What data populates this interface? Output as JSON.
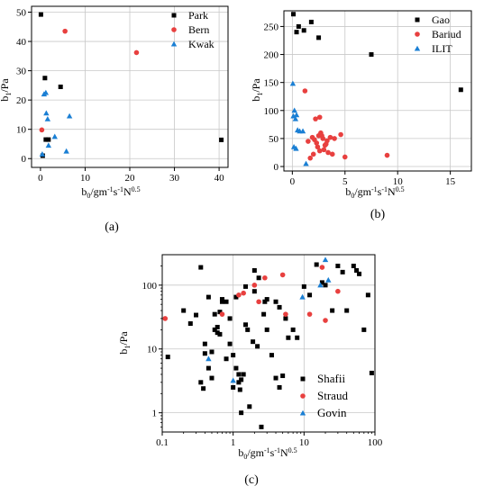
{
  "colors": {
    "black": "#000000",
    "red": "#e8403f",
    "blue": "#1a7fd4",
    "grid": "#c8c8c8",
    "frame": "#000000"
  },
  "panels": [
    {
      "label": "(a)"
    },
    {
      "label": "(b)"
    },
    {
      "label": "(c)"
    }
  ],
  "chart_data": [
    {
      "type": "scatter",
      "panel": "(a)",
      "xlabel": "b0/gm-1s-1N0.5",
      "ylabel": "b1/Pa",
      "xlim": [
        -2,
        42
      ],
      "ylim": [
        -3,
        52
      ],
      "x_scale": "linear",
      "y_scale": "linear",
      "xticks": [
        0,
        10,
        20,
        30,
        40
      ],
      "yticks": [
        0,
        10,
        20,
        30,
        40,
        50
      ],
      "grid": true,
      "legend_position": "top-right",
      "series": [
        {
          "name": "Park",
          "marker": "square",
          "color": "#000000",
          "x": [
            0.1,
            0.5,
            1.0,
            1.2,
            1.8,
            4.5,
            40.5
          ],
          "y": [
            49.2,
            1.0,
            27.5,
            6.5,
            6.5,
            24.5,
            6.4
          ]
        },
        {
          "name": "Bern",
          "marker": "circle",
          "color": "#e8403f",
          "x": [
            5.5,
            21.5,
            0.3
          ],
          "y": [
            43.5,
            36.2,
            9.8
          ]
        },
        {
          "name": "Kwak",
          "marker": "triangle",
          "color": "#1a7fd4",
          "x": [
            0.8,
            1.2,
            1.3,
            1.6,
            1.8,
            3.2,
            6.5,
            5.8,
            0.4
          ],
          "y": [
            22.0,
            22.5,
            15.5,
            13.5,
            4.5,
            7.5,
            14.5,
            2.5,
            1.5
          ]
        }
      ]
    },
    {
      "type": "scatter",
      "panel": "(b)",
      "xlabel": "b0/gm-1s-1N0.5",
      "ylabel": "b1/Pa",
      "xlim": [
        -0.8,
        17
      ],
      "ylim": [
        -8,
        278
      ],
      "x_scale": "linear",
      "y_scale": "linear",
      "xticks": [
        0,
        5,
        10,
        15
      ],
      "yticks": [
        0,
        50,
        100,
        150,
        200,
        250
      ],
      "grid": true,
      "legend_position": "top-right",
      "series": [
        {
          "name": "Gao",
          "marker": "square",
          "color": "#000000",
          "x": [
            0.1,
            0.4,
            0.6,
            1.1,
            1.8,
            2.5,
            7.5,
            16.0
          ],
          "y": [
            272,
            240,
            250,
            243,
            258,
            230,
            200,
            137
          ]
        },
        {
          "name": "Bariud",
          "marker": "circle",
          "color": "#e8403f",
          "x": [
            1.2,
            1.5,
            1.9,
            2.1,
            2.3,
            2.5,
            2.7,
            2.9,
            3.1,
            3.3,
            3.6,
            4.0,
            4.6,
            2.2,
            2.6,
            3.0,
            3.4,
            3.8,
            1.7,
            2.4,
            2.8,
            3.2,
            5.0,
            9.0,
            2.0,
            2.6
          ],
          "y": [
            135,
            45,
            52,
            48,
            42,
            55,
            60,
            50,
            38,
            46,
            52,
            50,
            57,
            85,
            88,
            30,
            25,
            22,
            15,
            35,
            55,
            40,
            17,
            20,
            22,
            28
          ]
        },
        {
          "name": "ILIT",
          "marker": "triangle",
          "color": "#1a7fd4",
          "x": [
            0.05,
            0.2,
            0.4,
            0.3,
            0.5,
            0.7,
            1.0,
            0.15,
            0.35,
            1.3,
            0.1
          ],
          "y": [
            148,
            100,
            92,
            85,
            65,
            63,
            63,
            35,
            32,
            5,
            90
          ]
        }
      ]
    },
    {
      "type": "scatter",
      "panel": "(c)",
      "xlabel": "b0/gm-1s-1N0.5",
      "ylabel": "b1/Pa",
      "xlim": [
        0.1,
        100
      ],
      "ylim": [
        0.5,
        300
      ],
      "x_scale": "log",
      "y_scale": "log",
      "xticks": [
        0.1,
        1,
        10,
        100
      ],
      "yticks": [
        1,
        10,
        100
      ],
      "grid": true,
      "legend_position": "bottom-right",
      "series": [
        {
          "name": "Shafii",
          "marker": "square",
          "color": "#000000",
          "x": [
            0.12,
            0.2,
            0.25,
            0.3,
            0.35,
            0.4,
            0.45,
            0.5,
            0.55,
            0.6,
            0.65,
            0.7,
            0.8,
            0.9,
            1.0,
            1.1,
            1.2,
            1.3,
            1.4,
            1.5,
            1.7,
            1.9,
            2.0,
            2.2,
            2.5,
            2.8,
            3.0,
            3.5,
            4.0,
            4.5,
            5.0,
            5.5,
            6.0,
            7.0,
            8.0,
            10.0,
            12.0,
            15.0,
            18.0,
            20.0,
            25.0,
            30.0,
            35.0,
            40.0,
            50.0,
            55.0,
            60.0,
            70.0,
            80.0,
            90.0,
            0.4,
            0.45,
            0.5,
            0.6,
            0.7,
            0.8,
            1.0,
            1.2,
            1.5,
            2.0,
            3.0,
            4.0,
            1.1,
            1.3,
            0.35,
            0.55,
            0.65,
            0.9,
            1.25,
            2.3,
            2.7,
            4.5,
            1.6,
            0.38
          ],
          "y": [
            7.5,
            40,
            25,
            34,
            190,
            8.5,
            65,
            3.5,
            20,
            22,
            17,
            60,
            55,
            12,
            2.5,
            65,
            3,
            1,
            4,
            95,
            1.25,
            13,
            170,
            11,
            0.6,
            55,
            60,
            8,
            3.5,
            2.5,
            3.8,
            30,
            15,
            20,
            15,
            95,
            70,
            210,
            110,
            100,
            40,
            200,
            160,
            40,
            200,
            170,
            150,
            20,
            70,
            4.2,
            12,
            5,
            9,
            18,
            55,
            7,
            8,
            4,
            24,
            80,
            20,
            55,
            5,
            3.3,
            3,
            35,
            38,
            30,
            2.3,
            130,
            35,
            45,
            20,
            2.4
          ]
        },
        {
          "name": "Straud",
          "marker": "circle",
          "color": "#e8403f",
          "x": [
            0.11,
            1.2,
            1.4,
            2.0,
            2.3,
            2.8,
            5.0,
            5.5,
            12.0,
            18.0,
            20.0,
            30.0,
            0.7
          ],
          "y": [
            30,
            70,
            75,
            100,
            55,
            130,
            145,
            35,
            35,
            190,
            28,
            80,
            35
          ]
        },
        {
          "name": "Govin",
          "marker": "triangle",
          "color": "#1a7fd4",
          "x": [
            0.45,
            1.0,
            9.5,
            17.0,
            20.0,
            22.0
          ],
          "y": [
            7.0,
            3.2,
            65.0,
            100.0,
            250.0,
            120.0
          ]
        }
      ]
    }
  ]
}
